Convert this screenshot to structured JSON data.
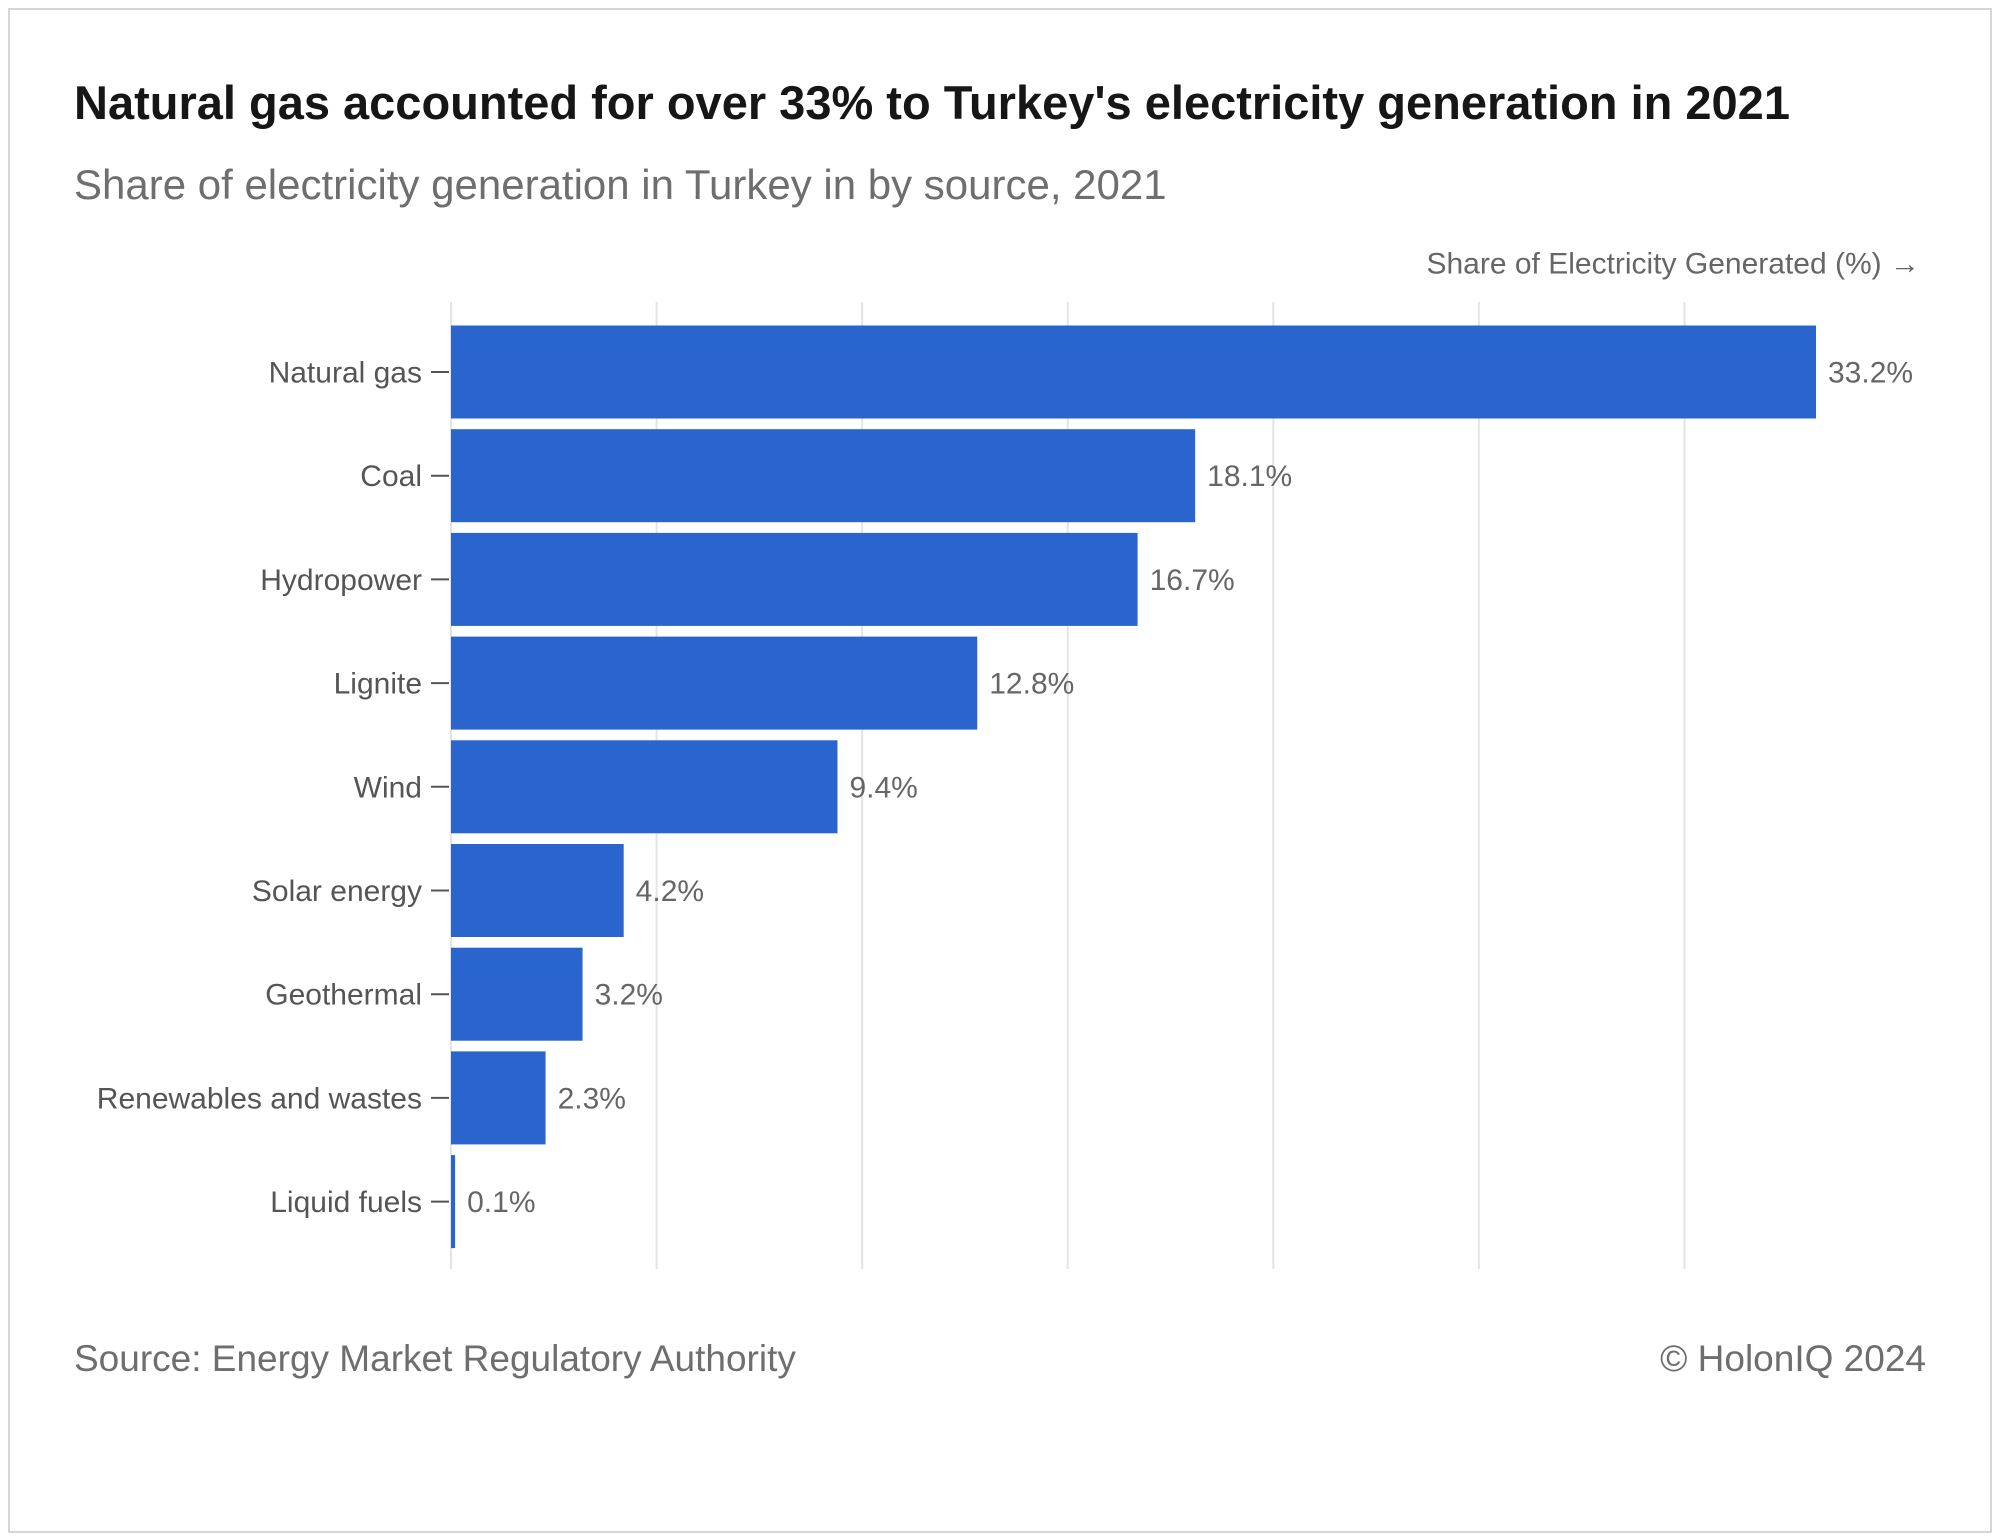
{
  "chart_data": {
    "type": "bar",
    "orientation": "horizontal",
    "title": "Natural gas accounted for over 33% to Turkey's electricity generation in 2021",
    "subtitle": "Share of electricity generation in Turkey in by source, 2021",
    "xlabel": "Share of Electricity Generated (%) →",
    "ylabel": "",
    "categories": [
      "Natural gas",
      "Coal",
      "Hydropower",
      "Lignite",
      "Wind",
      "Solar energy",
      "Geothermal",
      "Renewables and wastes",
      "Liquid fuels"
    ],
    "values": [
      33.2,
      18.1,
      16.7,
      12.8,
      9.4,
      4.2,
      3.2,
      2.3,
      0.1
    ],
    "value_labels": [
      "33.2%",
      "18.1%",
      "16.7%",
      "12.8%",
      "9.4%",
      "4.2%",
      "3.2%",
      "2.3%",
      "0.1%"
    ],
    "xlim": [
      0,
      33.2
    ],
    "x_gridlines": [
      0,
      5,
      10,
      15,
      20,
      25,
      30
    ],
    "grid": true,
    "legend": "none",
    "bar_color": "#2a64cd"
  },
  "footer": {
    "source": "Source: Energy Market Regulatory Authority",
    "credit": "© HolonIQ 2024"
  }
}
